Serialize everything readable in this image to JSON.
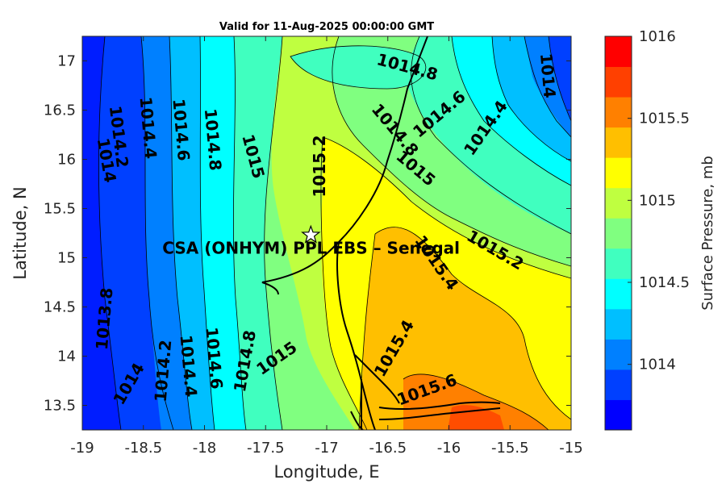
{
  "chart_data": {
    "type": "contour",
    "title": "Valid for 11-Aug-2025 00:00:00 GMT",
    "xlabel": "Longitude, E",
    "ylabel": "Latitude, N",
    "xlim": [
      -19,
      -15
    ],
    "ylim": [
      13.25,
      17.25
    ],
    "x_ticks": [
      "-19",
      "-18.5",
      "-18",
      "-17.5",
      "-17",
      "-16.5",
      "-16",
      "-15.5",
      "-15"
    ],
    "x_tick_values": [
      -19,
      -18.5,
      -18,
      -17.5,
      -17,
      -16.5,
      -16,
      -15.5,
      -15
    ],
    "y_ticks": [
      "13.5",
      "14",
      "14.5",
      "15",
      "15.5",
      "16",
      "16.5",
      "17"
    ],
    "y_tick_values": [
      13.5,
      14,
      14.5,
      15,
      15.5,
      16,
      16.5,
      17
    ],
    "colorbar": {
      "label": "Surface Pressure, mb",
      "range": [
        1013.6,
        1016
      ],
      "step": 0.2,
      "ticks": [
        "1014",
        "1014.5",
        "1015",
        "1015.5",
        "1016"
      ],
      "tick_values": [
        1014,
        1014.5,
        1015,
        1015.5,
        1016
      ],
      "colors": [
        "#0000ff",
        "#0040ff",
        "#0080ff",
        "#00bfff",
        "#00ffff",
        "#40ffbf",
        "#80ff80",
        "#bfff40",
        "#ffff00",
        "#ffbf00",
        "#ff8000",
        "#ff4000",
        "#ff0000"
      ]
    },
    "contour_levels": [
      {
        "label": "1013.8",
        "lon": -18.82,
        "lat": 14.38,
        "rotation": -85
      },
      {
        "label": "1014",
        "lon": -18.8,
        "lat": 15.99,
        "rotation": 80
      },
      {
        "label": "1014.2",
        "lon": -18.7,
        "lat": 16.23,
        "rotation": 83
      },
      {
        "label": "1014.4",
        "lon": -18.46,
        "lat": 16.32,
        "rotation": 85
      },
      {
        "label": "1014.6",
        "lon": -18.19,
        "lat": 16.3,
        "rotation": 85
      },
      {
        "label": "1014.8",
        "lon": -17.93,
        "lat": 16.2,
        "rotation": 85
      },
      {
        "label": "1015",
        "lon": -17.6,
        "lat": 16.03,
        "rotation": 75
      },
      {
        "label": "1015.2",
        "lon": -17.06,
        "lat": 15.93,
        "rotation": -90
      },
      {
        "label": "1014.8",
        "lon": -16.34,
        "lat": 16.94,
        "rotation": 15
      },
      {
        "label": "1014.8",
        "lon": -16.44,
        "lat": 16.3,
        "rotation": 50
      },
      {
        "label": "1014.6",
        "lon": -16.08,
        "lat": 16.46,
        "rotation": -40
      },
      {
        "label": "1014.4",
        "lon": -15.7,
        "lat": 16.32,
        "rotation": -55
      },
      {
        "label": "1014",
        "lon": -15.19,
        "lat": 16.85,
        "rotation": 85
      },
      {
        "label": "1015",
        "lon": -16.27,
        "lat": 15.91,
        "rotation": 40
      },
      {
        "label": "1015.2",
        "lon": -15.62,
        "lat": 15.08,
        "rotation": 30
      },
      {
        "label": "1015.4",
        "lon": -16.1,
        "lat": 14.95,
        "rotation": 55
      },
      {
        "label": "1015.4",
        "lon": -16.45,
        "lat": 14.08,
        "rotation": -60
      },
      {
        "label": "1015.6",
        "lon": -16.18,
        "lat": 13.66,
        "rotation": -20
      },
      {
        "label": "1015",
        "lon": -17.41,
        "lat": 13.98,
        "rotation": -35
      },
      {
        "label": "1014.8",
        "lon": -17.67,
        "lat": 13.95,
        "rotation": -80
      },
      {
        "label": "1014.6",
        "lon": -17.92,
        "lat": 13.98,
        "rotation": 85
      },
      {
        "label": "1014.4",
        "lon": -18.13,
        "lat": 13.9,
        "rotation": 85
      },
      {
        "label": "1014.2",
        "lon": -18.34,
        "lat": 13.85,
        "rotation": -85
      },
      {
        "label": "1014",
        "lon": -18.62,
        "lat": 13.72,
        "rotation": -60
      }
    ],
    "station": {
      "name": "CSA (ONHYM) PPL EBS  – Senegal",
      "lon": -17.13,
      "lat": 15.23,
      "marker": "star"
    }
  }
}
